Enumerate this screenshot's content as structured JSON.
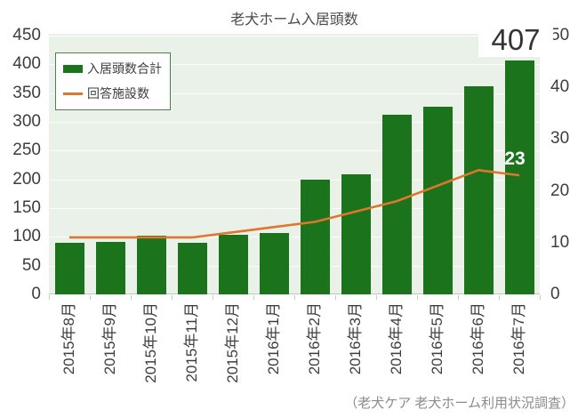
{
  "title": "老犬ホーム入居頭数",
  "caption": "（老犬ケア 老犬ホーム利用状況調査）",
  "legend": {
    "bar_label": "入居頭数合計",
    "line_label": "回答施設数"
  },
  "annotations": {
    "last_bar_value": "407",
    "last_line_value": "23"
  },
  "colors": {
    "bar": "#1b731b",
    "line": "#e0762e",
    "plot_bg": "#e9f1e8",
    "grid": "#fbfdfb",
    "baseline": "#b9cdb9",
    "tick": "#bfd2bf",
    "axis_text": "#3d3d3d",
    "caption_text": "#8b8b8b",
    "legend_border": "#4f7d50",
    "bar_callout_text": "#333333",
    "line_callout_text": "#ffffff"
  },
  "chart_data": {
    "type": "bar",
    "title": "老犬ホーム入居頭数",
    "categories": [
      "2015年8月",
      "2015年9月",
      "2015年10月",
      "2015年11月",
      "2015年12月",
      "2016年1月",
      "2016年2月",
      "2016年3月",
      "2016年4月",
      "2016年5月",
      "2016年6月",
      "2016年7月"
    ],
    "series": [
      {
        "name": "入居頭数合計",
        "type": "bar",
        "axis": "left",
        "values": [
          90,
          91,
          102,
          90,
          104,
          107,
          200,
          208,
          312,
          326,
          362,
          407
        ]
      },
      {
        "name": "回答施設数",
        "type": "line",
        "axis": "right",
        "values": [
          11,
          11,
          11,
          11,
          12,
          13,
          14,
          16,
          18,
          21,
          24,
          23
        ]
      }
    ],
    "left_axis": {
      "min": 0,
      "max": 450,
      "step": 50
    },
    "right_axis": {
      "min": 0,
      "max": 50,
      "step": 10
    },
    "grid": true,
    "legend_position": "top-left",
    "data_labels": {
      "last_bar": 407,
      "last_line": 23
    }
  }
}
